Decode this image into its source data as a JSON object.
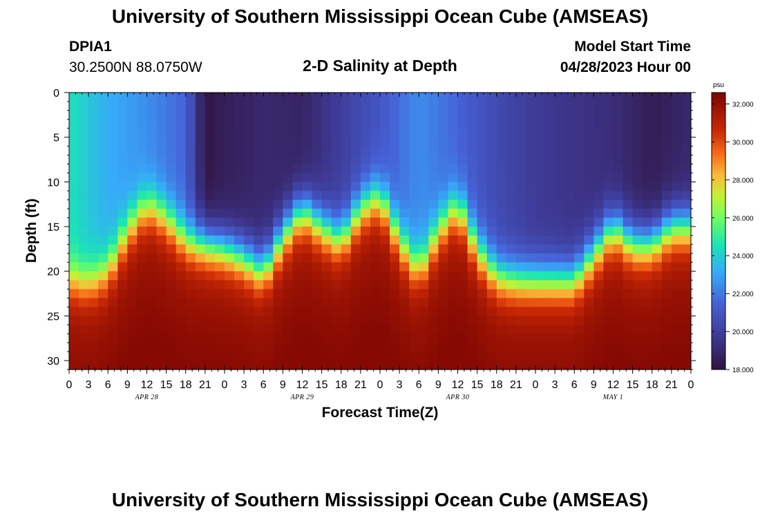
{
  "header": {
    "title": "University of Southern Mississippi Ocean Cube (AMSEAS)",
    "station_id": "DPIA1",
    "station_coords": "30.2500N  88.0750W",
    "plot_title": "2-D Salinity at Depth",
    "model_start_label": "Model Start Time",
    "model_start_datetime": "04/28/2023 Hour 00"
  },
  "footer": {
    "title": "University of Southern Mississippi Ocean Cube (AMSEAS)"
  },
  "chart_data": {
    "type": "heatmap",
    "title": "2-D Salinity at Depth",
    "xlabel": "Forecast Time(Z)",
    "ylabel": "Depth (ft)",
    "x_range_hours": [
      0,
      96
    ],
    "y_range_ft": [
      0,
      31
    ],
    "x_tick_labels": [
      "0",
      "3",
      "6",
      "9",
      "12",
      "15",
      "18",
      "21",
      "0",
      "3",
      "6",
      "9",
      "12",
      "15",
      "18",
      "21",
      "0",
      "3",
      "6",
      "9",
      "12",
      "15",
      "18",
      "21",
      "0",
      "3",
      "6",
      "9",
      "12",
      "15",
      "18",
      "21",
      "0"
    ],
    "y_ticks": [
      0,
      5,
      10,
      15,
      20,
      25,
      30
    ],
    "day_labels": [
      {
        "label": "APR 28",
        "hour": 12
      },
      {
        "label": "APR 29",
        "hour": 36
      },
      {
        "label": "APR 30",
        "hour": 60
      },
      {
        "label": "MAY 1",
        "hour": 84
      }
    ],
    "colorbar": {
      "unit": "psu",
      "min": 18.0,
      "max": 32.6,
      "ticks": [
        "18.000",
        "20.000",
        "22.000",
        "24.000",
        "26.000",
        "28.000",
        "30.000",
        "32.000"
      ]
    },
    "surface_salinity_psu": {
      "hours": [
        0,
        6,
        12,
        18,
        21,
        24,
        30,
        36,
        42,
        48,
        54,
        60,
        66,
        72,
        78,
        84,
        90,
        96
      ],
      "values": [
        24.5,
        23.2,
        22.5,
        21.5,
        18.2,
        18.6,
        19.0,
        18.8,
        20.0,
        21.0,
        22.5,
        21.5,
        20.5,
        19.8,
        19.5,
        19.2,
        18.5,
        19.0
      ]
    },
    "halocline_depth_ft": {
      "hours": [
        0,
        3,
        6,
        9,
        12,
        15,
        18,
        21,
        24,
        27,
        30,
        33,
        36,
        39,
        42,
        45,
        48,
        51,
        54,
        57,
        60,
        63,
        66,
        69,
        72,
        75,
        78,
        81,
        84,
        87,
        90,
        93,
        96
      ],
      "values": [
        21.0,
        21.5,
        20.0,
        15.5,
        12.5,
        14.0,
        16.5,
        17.0,
        17.5,
        18.5,
        20.0,
        16.0,
        13.0,
        15.0,
        16.5,
        13.0,
        11.5,
        16.5,
        20.0,
        15.5,
        12.5,
        17.5,
        20.5,
        21.0,
        21.0,
        21.0,
        21.0,
        18.0,
        15.0,
        17.0,
        17.0,
        15.0,
        15.0
      ]
    },
    "bottom_salinity_psu": 31.5
  }
}
